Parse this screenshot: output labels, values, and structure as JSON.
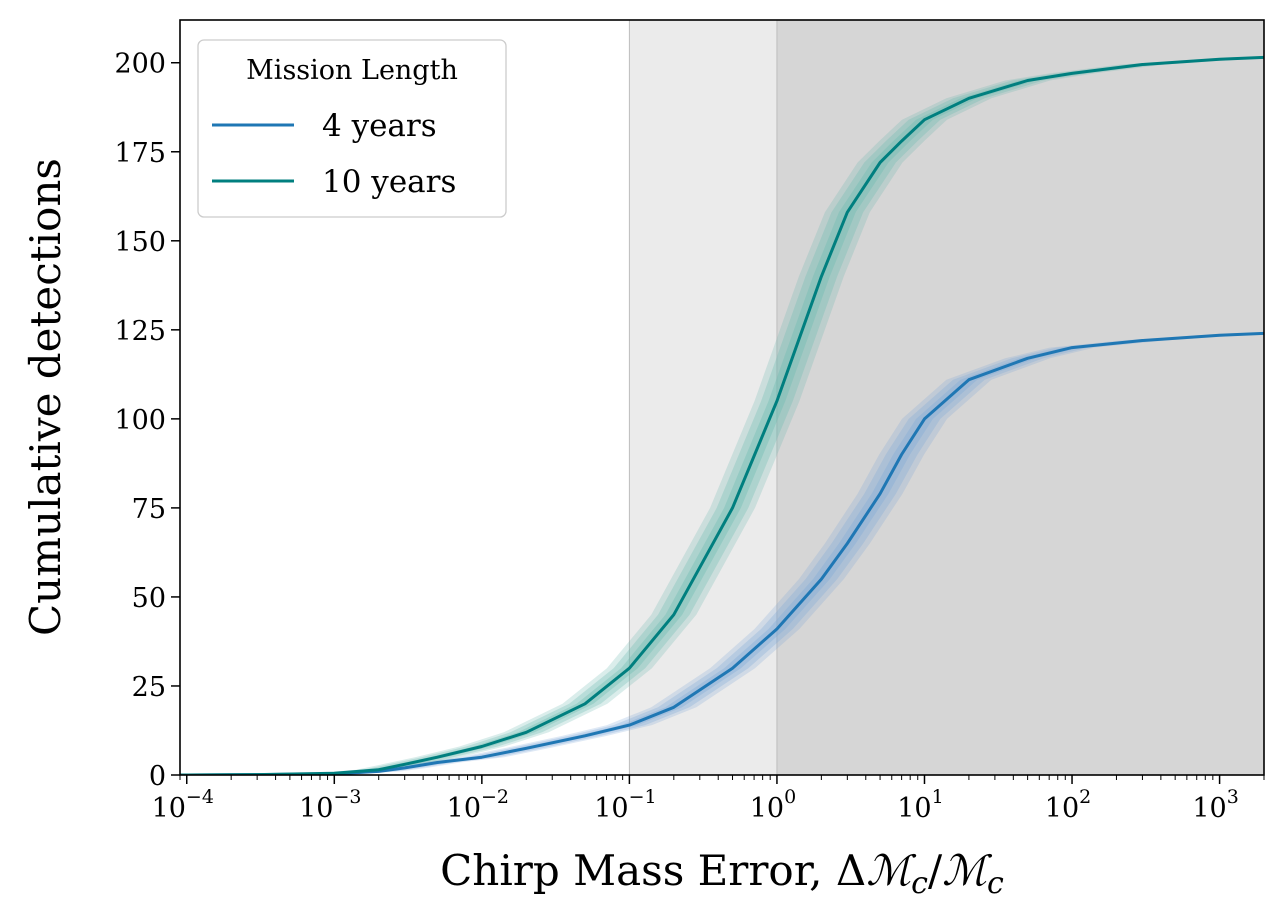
{
  "chart_data": {
    "type": "line",
    "xlabel": "Chirp Mass Error, ΔℳC/ℳC",
    "xlabel_parts": {
      "prefix": "Chirp Mass Error, Δ",
      "num": "ℳ",
      "sub1": "c",
      "slash": "/",
      "den": "ℳ",
      "sub2": "c"
    },
    "ylabel": "Cumulative detections",
    "x_scale": "log",
    "xlim": [
      9e-05,
      2000
    ],
    "ylim": [
      0,
      212
    ],
    "grid": false,
    "x_ticks": [
      {
        "value": 0.0001,
        "base": "10",
        "exp": "−4"
      },
      {
        "value": 0.001,
        "base": "10",
        "exp": "−3"
      },
      {
        "value": 0.01,
        "base": "10",
        "exp": "−2"
      },
      {
        "value": 0.1,
        "base": "10",
        "exp": "−1"
      },
      {
        "value": 1,
        "base": "10",
        "exp": "0"
      },
      {
        "value": 10,
        "base": "10",
        "exp": "1"
      },
      {
        "value": 100,
        "base": "10",
        "exp": "2"
      },
      {
        "value": 1000,
        "base": "10",
        "exp": "3"
      }
    ],
    "y_ticks": [
      0,
      25,
      50,
      75,
      100,
      125,
      150,
      175,
      200
    ],
    "shaded_regions": [
      {
        "x_from": 0.1,
        "x_to": 1,
        "color": "#ebebeb"
      },
      {
        "x_from": 1,
        "x_to": 2000,
        "color": "#d6d6d6"
      }
    ],
    "legend": {
      "title": "Mission Length",
      "placement": "top-left"
    },
    "series": [
      {
        "name": "4 years",
        "color": "#1f77b4",
        "band_color": "#7fa8d8",
        "x": [
          9e-05,
          0.0001,
          0.0003,
          0.001,
          0.002,
          0.003,
          0.005,
          0.01,
          0.02,
          0.05,
          0.1,
          0.2,
          0.5,
          1,
          2,
          3,
          5,
          7,
          10,
          20,
          50,
          100,
          300,
          1000,
          2000
        ],
        "y": [
          0,
          0,
          0.1,
          0.3,
          1,
          2,
          3.5,
          5,
          7.5,
          11,
          14,
          19,
          30,
          41,
          55,
          65,
          79,
          90,
          100,
          111,
          117,
          120,
          122,
          123.5,
          124
        ]
      },
      {
        "name": "10 years",
        "color": "#007f7f",
        "band_color": "#6ab9b0",
        "x": [
          9e-05,
          0.0001,
          0.0003,
          0.001,
          0.002,
          0.003,
          0.005,
          0.01,
          0.02,
          0.05,
          0.1,
          0.2,
          0.5,
          1,
          2,
          3,
          5,
          7,
          10,
          20,
          50,
          100,
          300,
          1000,
          2000
        ],
        "y": [
          0,
          0,
          0.1,
          0.5,
          1.5,
          3,
          5,
          8,
          12,
          20,
          30,
          45,
          75,
          105,
          140,
          158,
          172,
          178,
          184,
          190,
          195,
          197,
          199.5,
          201,
          201.5
        ]
      }
    ]
  }
}
